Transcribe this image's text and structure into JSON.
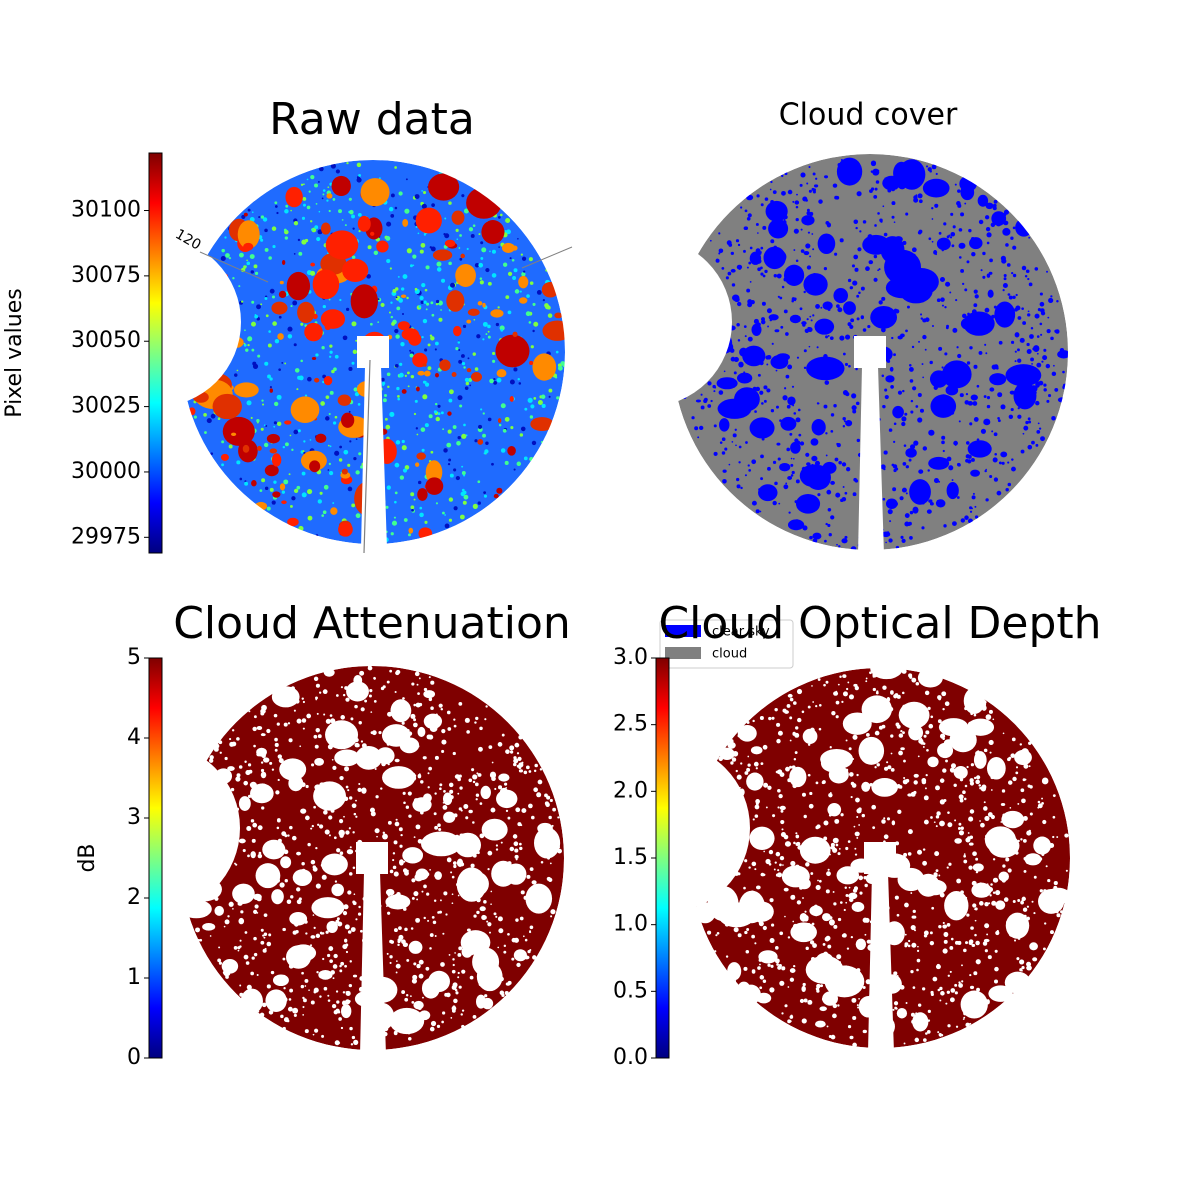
{
  "chart_data": [
    {
      "type": "image",
      "title": "Raw data",
      "colorbar_label": "Pixel values",
      "clim": [
        29969,
        30122
      ],
      "cticks": [
        29975,
        30000,
        30025,
        30050,
        30075,
        30100
      ],
      "annotations": [
        "120"
      ]
    },
    {
      "type": "image",
      "title": "Cloud cover",
      "legend": [
        {
          "name": "clear sky",
          "color": "#0000ff"
        },
        {
          "name": "cloud",
          "color": "#808080"
        }
      ]
    },
    {
      "type": "image",
      "title": "Cloud Attenuation",
      "colorbar_label": "dB",
      "clim": [
        0,
        5
      ],
      "cticks": [
        0,
        1,
        2,
        3,
        4,
        5
      ]
    },
    {
      "type": "image",
      "title": "Cloud Optical Depth",
      "clim": [
        0,
        3
      ],
      "cticks": [
        {
          "value": 0,
          "label": "0.0"
        },
        {
          "value": 0.5,
          "label": "0.5"
        },
        {
          "value": 1,
          "label": "1.0"
        },
        {
          "value": 1.5,
          "label": "1.5"
        },
        {
          "value": 2,
          "label": "2.0"
        },
        {
          "value": 2.5,
          "label": "2.5"
        },
        {
          "value": 3,
          "label": "3.0"
        }
      ]
    }
  ]
}
